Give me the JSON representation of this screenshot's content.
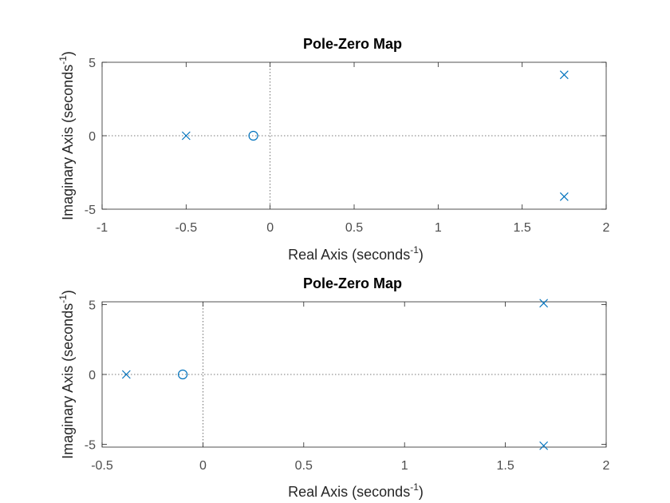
{
  "chart_data": [
    {
      "type": "scatter",
      "title": "Pole-Zero Map",
      "xlabel": "Real Axis (seconds",
      "xlabel_sup": "-1",
      "xlabel_end": ")",
      "ylabel": "Imaginary Axis (seconds",
      "ylabel_sup": "-1",
      "ylabel_end": ")",
      "xlim": [
        -1,
        2
      ],
      "ylim": [
        -5,
        5
      ],
      "xticks": [
        -1,
        -0.5,
        0,
        0.5,
        1,
        1.5,
        2
      ],
      "xtick_labels": [
        "-1",
        "-0.5",
        "0",
        "0.5",
        "1",
        "1.5",
        "2"
      ],
      "yticks": [
        -5,
        0,
        5
      ],
      "ytick_labels": [
        "-5",
        "0",
        "5"
      ],
      "poles": [
        {
          "re": -0.5,
          "im": 0
        },
        {
          "re": 1.75,
          "im": 4.15
        },
        {
          "re": 1.75,
          "im": -4.15
        }
      ],
      "zeros": [
        {
          "re": -0.1,
          "im": 0
        }
      ],
      "grid": false,
      "marker_color": "#0072bd"
    },
    {
      "type": "scatter",
      "title": "Pole-Zero Map",
      "xlabel": "Real Axis (seconds",
      "xlabel_sup": "-1",
      "xlabel_end": ")",
      "ylabel": "Imaginary Axis (seconds",
      "ylabel_sup": "-1",
      "ylabel_end": ")",
      "xlim": [
        -0.5,
        2
      ],
      "ylim": [
        -5.2,
        5.2
      ],
      "xticks": [
        -0.5,
        0,
        0.5,
        1,
        1.5,
        2
      ],
      "xtick_labels": [
        "-0.5",
        "0",
        "0.5",
        "1",
        "1.5",
        "2"
      ],
      "yticks": [
        -5,
        0,
        5
      ],
      "ytick_labels": [
        "-5",
        "0",
        "5"
      ],
      "poles": [
        {
          "re": -0.38,
          "im": 0
        },
        {
          "re": 1.69,
          "im": 5.1
        },
        {
          "re": 1.69,
          "im": -5.1
        }
      ],
      "zeros": [
        {
          "re": -0.1,
          "im": 0
        }
      ],
      "grid": false,
      "marker_color": "#0072bd"
    }
  ]
}
